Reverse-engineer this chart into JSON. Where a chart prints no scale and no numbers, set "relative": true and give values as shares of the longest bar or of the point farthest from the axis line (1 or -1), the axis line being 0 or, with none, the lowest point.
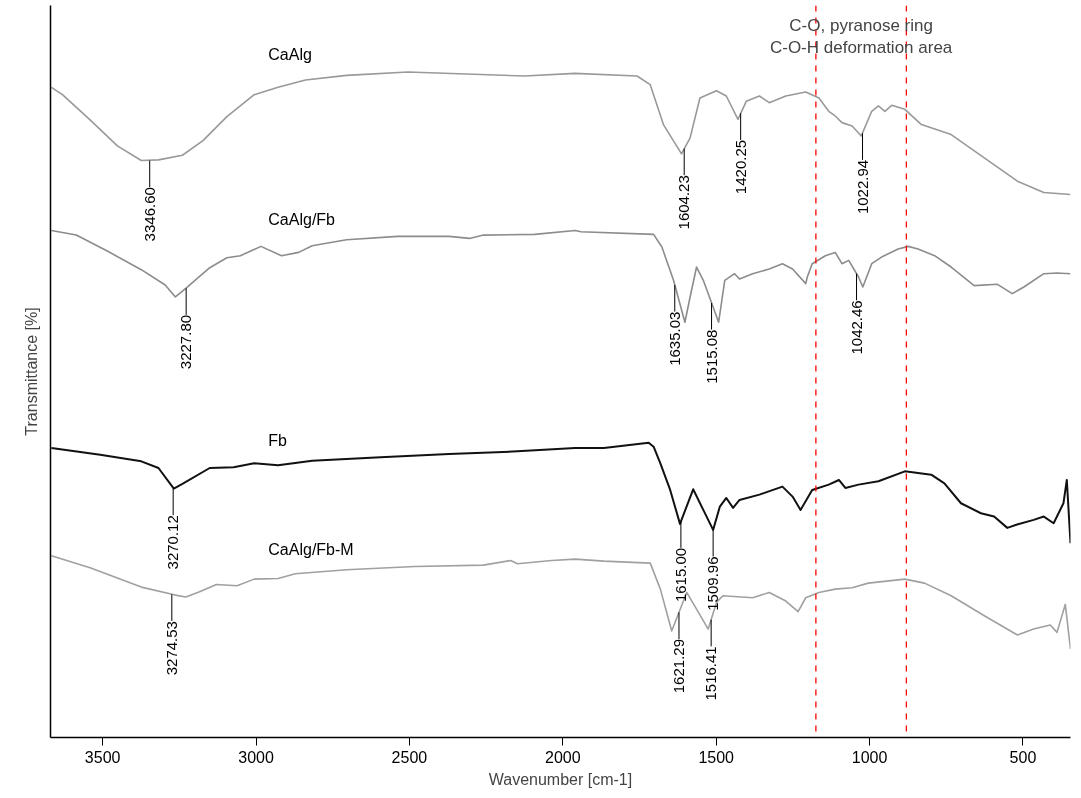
{
  "chart_data": {
    "type": "line",
    "relative": true,
    "xlabel": "Wavenumber [cm-1]",
    "ylabel": "Transmittance [%]",
    "xlim": [
      3670,
      345
    ],
    "xticks": [
      3500,
      3000,
      2500,
      2000,
      1500,
      1000,
      500
    ],
    "tick_labels": "x",
    "grid": false,
    "marker": "none",
    "line_style": "solid",
    "series": [
      {
        "name": "CaAlg",
        "color": "#999999",
        "x": [
          3667,
          3631,
          3541,
          3452,
          3374,
          3318,
          3240,
          3173,
          3095,
          3006,
          2928,
          2839,
          2705,
          2505,
          2315,
          2125,
          1960,
          1758,
          1715,
          1672,
          1613,
          1585,
          1553,
          1499,
          1467,
          1429,
          1402,
          1359,
          1327,
          1273,
          1208,
          1165,
          1133,
          1112,
          1090,
          1057,
          1027,
          993,
          971,
          950,
          928,
          885,
          831,
          734,
          626,
          518,
          432,
          345
        ],
        "values": [
          0.977,
          0.966,
          0.928,
          0.889,
          0.867,
          0.868,
          0.875,
          0.897,
          0.933,
          0.966,
          0.977,
          0.988,
          0.995,
          1,
          0.997,
          0.994,
          0.998,
          0.994,
          0.981,
          0.921,
          0.877,
          0.901,
          0.961,
          0.972,
          0.964,
          0.929,
          0.956,
          0.964,
          0.954,
          0.964,
          0.97,
          0.961,
          0.941,
          0.934,
          0.924,
          0.919,
          0.904,
          0.941,
          0.949,
          0.941,
          0.95,
          0.944,
          0.921,
          0.906,
          0.871,
          0.836,
          0.819,
          0.816
        ]
      },
      {
        "name": "CaAlg/Fb",
        "color": "#8c8c8c",
        "x": [
          3667,
          3586,
          3485,
          3374,
          3296,
          3263,
          3229,
          3151,
          3095,
          3051,
          2984,
          2917,
          2861,
          2817,
          2705,
          2538,
          2371,
          2304,
          2259,
          2092,
          1960,
          1941,
          1704,
          1677,
          1639,
          1602,
          1585,
          1564,
          1542,
          1510,
          1492,
          1472,
          1440,
          1424,
          1381,
          1327,
          1284,
          1251,
          1208,
          1203,
          1187,
          1144,
          1112,
          1090,
          1068,
          1036,
          1022,
          993,
          961,
          907,
          874,
          842,
          788,
          734,
          659,
          583,
          535,
          497,
          432,
          389,
          345
        ],
        "values": [
          0.762,
          0.755,
          0.731,
          0.703,
          0.68,
          0.662,
          0.675,
          0.706,
          0.721,
          0.724,
          0.738,
          0.724,
          0.729,
          0.739,
          0.748,
          0.753,
          0.753,
          0.75,
          0.755,
          0.756,
          0.762,
          0.76,
          0.756,
          0.737,
          0.687,
          0.624,
          0.662,
          0.707,
          0.687,
          0.647,
          0.624,
          0.687,
          0.697,
          0.689,
          0.697,
          0.704,
          0.712,
          0.704,
          0.682,
          0.692,
          0.712,
          0.724,
          0.729,
          0.712,
          0.717,
          0.692,
          0.677,
          0.712,
          0.722,
          0.734,
          0.738,
          0.734,
          0.724,
          0.707,
          0.679,
          0.681,
          0.667,
          0.677,
          0.697,
          0.698,
          0.697
        ]
      },
      {
        "name": "Fb",
        "color": "#111111",
        "x": [
          3667,
          3508,
          3374,
          3318,
          3268,
          3240,
          3151,
          3073,
          3006,
          2928,
          2817,
          2594,
          2371,
          2148,
          1960,
          1866,
          1720,
          1704,
          1682,
          1650,
          1618,
          1575,
          1542,
          1510,
          1488,
          1467,
          1445,
          1424,
          1359,
          1284,
          1251,
          1225,
          1187,
          1133,
          1100,
          1079,
          1036,
          971,
          885,
          799,
          756,
          702,
          637,
          594,
          551,
          519,
          465,
          432,
          400,
          368,
          357,
          345
        ],
        "values": [
          0.435,
          0.425,
          0.415,
          0.405,
          0.374,
          0.381,
          0.405,
          0.406,
          0.412,
          0.409,
          0.416,
          0.421,
          0.426,
          0.43,
          0.435,
          0.435,
          0.443,
          0.437,
          0.412,
          0.372,
          0.321,
          0.373,
          0.342,
          0.312,
          0.347,
          0.36,
          0.345,
          0.357,
          0.365,
          0.377,
          0.362,
          0.342,
          0.372,
          0.38,
          0.387,
          0.375,
          0.38,
          0.385,
          0.4,
          0.395,
          0.382,
          0.352,
          0.337,
          0.332,
          0.315,
          0.32,
          0.327,
          0.332,
          0.322,
          0.352,
          0.387,
          0.292
        ]
      },
      {
        "name": "CaAlg/Fb-M",
        "color": "#a0a0a0",
        "x": [
          3667,
          3541,
          3374,
          3263,
          3229,
          3184,
          3129,
          3062,
          3006,
          2928,
          2872,
          2705,
          2482,
          2259,
          2170,
          2148,
          2036,
          1960,
          1866,
          1715,
          1682,
          1645,
          1596,
          1564,
          1526,
          1499,
          1478,
          1381,
          1327,
          1273,
          1233,
          1208,
          1165,
          1112,
          1057,
          1004,
          885,
          821,
          734,
          626,
          518,
          465,
          411,
          389,
          362,
          345
        ],
        "values": [
          0.273,
          0.255,
          0.226,
          0.214,
          0.211,
          0.219,
          0.23,
          0.228,
          0.238,
          0.239,
          0.246,
          0.252,
          0.257,
          0.259,
          0.266,
          0.261,
          0.266,
          0.268,
          0.265,
          0.262,
          0.223,
          0.16,
          0.218,
          0.193,
          0.163,
          0.203,
          0.213,
          0.21,
          0.218,
          0.205,
          0.189,
          0.21,
          0.218,
          0.223,
          0.225,
          0.232,
          0.238,
          0.232,
          0.213,
          0.183,
          0.154,
          0.163,
          0.169,
          0.158,
          0.2,
          0.133
        ]
      }
    ],
    "ref_lines": [
      {
        "axis": "x",
        "value": 1175,
        "color": "#ff0000",
        "line_style": "dashed"
      },
      {
        "axis": "x",
        "value": 880,
        "color": "#ff0000",
        "line_style": "dashed"
      }
    ],
    "annotations": [
      "C-O, pyranose ring",
      "C-O-H deformation area",
      {
        "text": "3346.60",
        "x": 3346.6,
        "y": 0.867
      },
      {
        "text": "1604.23",
        "x": 1604.23,
        "y": 0.885
      },
      {
        "text": "1420.25",
        "x": 1420.25,
        "y": 0.938
      },
      {
        "text": "1022.94",
        "x": 1022.94,
        "y": 0.908
      },
      {
        "text": "3227.80",
        "x": 3227.8,
        "y": 0.675
      },
      {
        "text": "1635.03",
        "x": 1635.03,
        "y": 0.68
      },
      {
        "text": "1515.08",
        "x": 1515.08,
        "y": 0.653
      },
      {
        "text": "1042.46",
        "x": 1042.46,
        "y": 0.697
      },
      {
        "text": "3270.12",
        "x": 3270.12,
        "y": 0.374
      },
      {
        "text": "1615.00",
        "x": 1615.0,
        "y": 0.325
      },
      {
        "text": "1509.96",
        "x": 1509.96,
        "y": 0.312
      },
      {
        "text": "3274.53",
        "x": 3274.53,
        "y": 0.215
      },
      {
        "text": "1621.29",
        "x": 1621.29,
        "y": 0.188
      },
      {
        "text": "1516.41",
        "x": 1516.41,
        "y": 0.177
      }
    ]
  }
}
